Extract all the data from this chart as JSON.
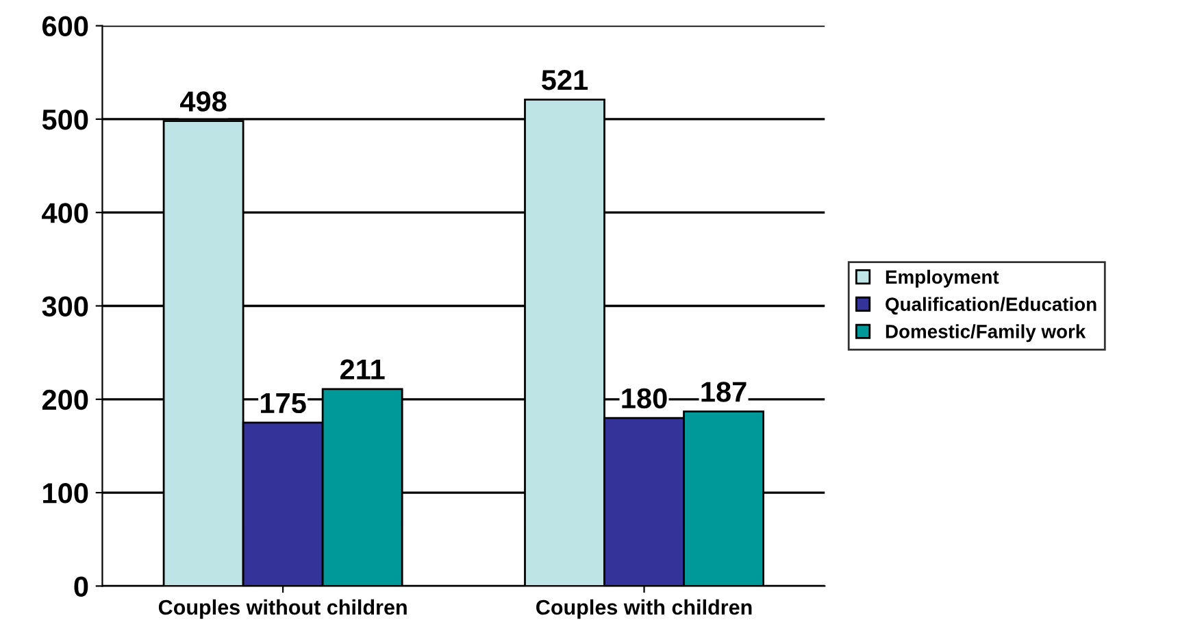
{
  "chart_data": {
    "type": "bar",
    "categories": [
      "Couples without children",
      "Couples with children"
    ],
    "series": [
      {
        "name": "Employment",
        "color": "#bfe4e6",
        "values": [
          498,
          521
        ]
      },
      {
        "name": "Qualification/Education",
        "color": "#333399",
        "values": [
          175,
          180
        ]
      },
      {
        "name": "Domestic/Family work",
        "color": "#009999",
        "values": [
          211,
          187
        ]
      }
    ],
    "ylim": [
      0,
      600
    ],
    "yticks": [
      0,
      100,
      200,
      300,
      400,
      500,
      600
    ],
    "grid": "y",
    "legend": "right",
    "data_labels": true
  }
}
